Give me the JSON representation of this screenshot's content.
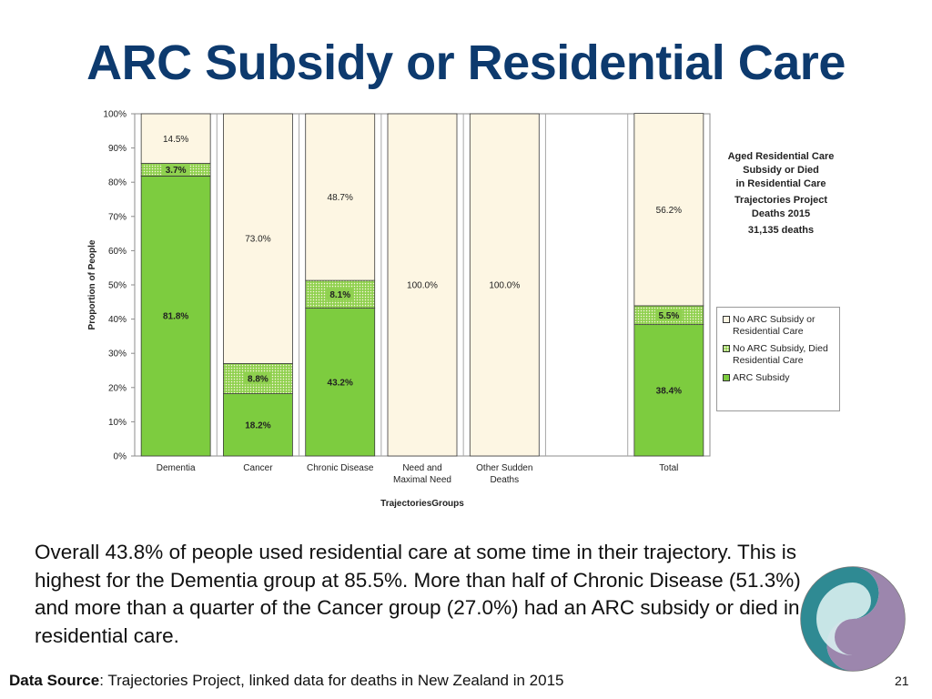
{
  "slide": {
    "title": "ARC Subsidy or Residential Care",
    "body": "Overall 43.8% of people used residential care at some time in their trajectory. This is highest for the Dementia group at 85.5%. More than half of Chronic Disease (51.3%) and more than a quarter of the Cancer group (27.0%) had an ARC subsidy or died in residential care.",
    "footer_label": "Data Source",
    "footer_text": ": Trajectories Project, linked data for deaths in New Zealand in 2015",
    "page_number": "21"
  },
  "chart_data": {
    "type": "bar",
    "stacked": true,
    "percent": true,
    "categories": [
      [
        "Dementia"
      ],
      [
        "Cancer"
      ],
      [
        "Chronic Disease"
      ],
      [
        "Need and",
        "Maximal Need"
      ],
      [
        "Other Sudden",
        "Deaths"
      ],
      [
        ""
      ],
      [
        "Total"
      ]
    ],
    "series": [
      {
        "name": "ARC Subsidy",
        "values": [
          81.8,
          18.2,
          43.2,
          0,
          0,
          null,
          38.4
        ],
        "labels": [
          "81.8%",
          "18.2%",
          "43.2%",
          "",
          "",
          "",
          "38.4%"
        ],
        "color": "#7dcc3f"
      },
      {
        "name": "No ARC Subsidy, Died Residential Care",
        "values": [
          3.7,
          8.8,
          8.1,
          0,
          0,
          null,
          5.5
        ],
        "labels": [
          "3.7%",
          "8.8%",
          "8.1%",
          "",
          "",
          "",
          "5.5%"
        ],
        "color": "#8fd14f"
      },
      {
        "name": "No ARC Subsidy or Residential Care",
        "values": [
          14.5,
          73.0,
          48.7,
          100.0,
          100.0,
          null,
          56.2
        ],
        "labels": [
          "14.5%",
          "73.0%",
          "48.7%",
          "100.0%",
          "100.0%",
          "",
          "56.2%"
        ],
        "color": "#fdf6e3"
      }
    ],
    "ylabel": "Proportion of People",
    "xlabel": "TrajectoriesGroups",
    "ylim": [
      0,
      100
    ],
    "yticks": [
      "0%",
      "10%",
      "20%",
      "30%",
      "40%",
      "50%",
      "60%",
      "70%",
      "80%",
      "90%",
      "100%"
    ],
    "side_annotation": [
      "Aged Residential Care",
      "Subsidy or Died",
      "in Residential Care",
      "",
      "Trajectories Project",
      "Deaths 2015",
      "",
      "31,135 deaths"
    ],
    "legend_position": "right",
    "legend": [
      "No ARC Subsidy or Residential Care",
      "No ARC Subsidy, Died Residential Care",
      "ARC Subsidy"
    ]
  }
}
